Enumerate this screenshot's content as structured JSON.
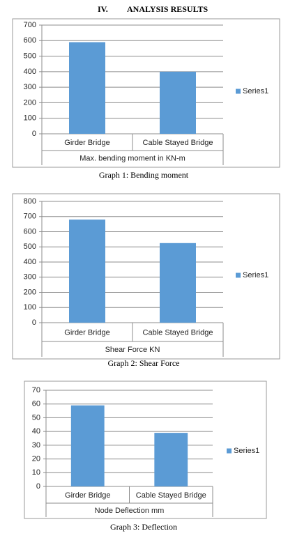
{
  "heading": {
    "number": "IV.",
    "title": "ANALYSIS RESULTS"
  },
  "chart_data": [
    {
      "type": "bar",
      "caption": "Graph 1: Bending moment",
      "x_label": "Max. bending moment in KN-m",
      "categories": [
        "Girder Bridge",
        "Cable Stayed Bridge"
      ],
      "series": [
        {
          "name": "Series1",
          "color": "#5b9bd5",
          "values": [
            590,
            400
          ]
        }
      ],
      "ylim": [
        0,
        700
      ],
      "yticks": [
        0,
        100,
        200,
        300,
        400,
        500,
        600,
        700
      ],
      "grid": true,
      "legend": "right"
    },
    {
      "type": "bar",
      "caption": "Graph 2: Shear Force",
      "x_label": "Shear Force KN",
      "categories": [
        "Girder Bridge",
        "Cable Stayed Bridge"
      ],
      "series": [
        {
          "name": "Series1",
          "color": "#5b9bd5",
          "values": [
            680,
            525
          ]
        }
      ],
      "ylim": [
        0,
        800
      ],
      "yticks": [
        0,
        100,
        200,
        300,
        400,
        500,
        600,
        700,
        800
      ],
      "grid": true,
      "legend": "right"
    },
    {
      "type": "bar",
      "caption": "Graph 3: Deflection",
      "x_label": "Node Deflection mm",
      "categories": [
        "Girder Bridge",
        "Cable Stayed Bridge"
      ],
      "series": [
        {
          "name": "Series1",
          "color": "#5b9bd5",
          "values": [
            59,
            39
          ]
        }
      ],
      "ylim": [
        0,
        70
      ],
      "yticks": [
        0,
        10,
        20,
        30,
        40,
        50,
        60,
        70
      ],
      "grid": true,
      "legend": "right"
    }
  ]
}
